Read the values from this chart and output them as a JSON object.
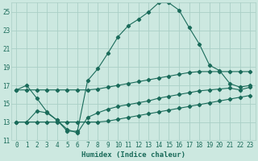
{
  "xlabel": "Humidex (Indice chaleur)",
  "xlim": [
    -0.5,
    23.5
  ],
  "ylim": [
    11,
    26
  ],
  "yticks": [
    11,
    13,
    15,
    17,
    19,
    21,
    23,
    25
  ],
  "xticks": [
    0,
    1,
    2,
    3,
    4,
    5,
    6,
    7,
    8,
    9,
    10,
    11,
    12,
    13,
    14,
    15,
    16,
    17,
    18,
    19,
    20,
    21,
    22,
    23
  ],
  "bg_color": "#cce8e0",
  "line_color": "#1a6b5a",
  "grid_color": "#aacfc6",
  "series1": [
    16.5,
    17.0,
    15.6,
    14.1,
    13.2,
    12.0,
    12.0,
    17.5,
    18.8,
    20.5,
    22.3,
    23.5,
    24.2,
    25.0,
    26.0,
    26.0,
    25.2,
    23.3,
    21.5,
    19.2,
    18.6,
    17.2,
    16.8,
    17.0
  ],
  "series2": [
    16.5,
    16.5,
    16.5,
    16.5,
    16.5,
    16.5,
    16.5,
    16.5,
    16.6,
    16.8,
    17.0,
    17.2,
    17.4,
    17.6,
    17.8,
    18.0,
    18.2,
    18.4,
    18.5,
    18.5,
    18.5,
    18.5,
    18.5,
    18.5
  ],
  "series3": [
    13.0,
    13.0,
    14.2,
    14.0,
    13.2,
    12.2,
    11.8,
    13.5,
    14.0,
    14.4,
    14.7,
    14.9,
    15.1,
    15.3,
    15.6,
    15.8,
    16.0,
    16.2,
    16.4,
    16.5,
    16.6,
    16.7,
    16.5,
    16.8
  ],
  "series4": [
    13.0,
    13.0,
    13.0,
    13.0,
    13.0,
    13.0,
    13.0,
    13.0,
    13.0,
    13.1,
    13.3,
    13.5,
    13.7,
    13.9,
    14.1,
    14.3,
    14.5,
    14.7,
    14.9,
    15.1,
    15.3,
    15.5,
    15.7,
    15.9
  ],
  "tick_fontsize": 5.5,
  "xlabel_fontsize": 6.5
}
